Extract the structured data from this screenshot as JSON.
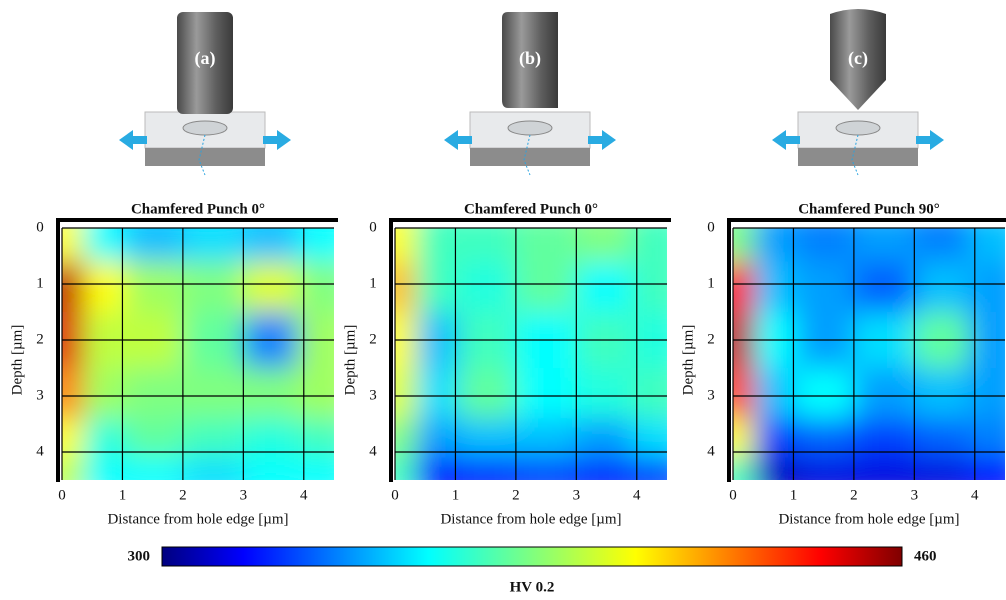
{
  "chart_data": [
    {
      "type": "contour",
      "panel_label": "(a)",
      "title": "Chamfered Punch 0°",
      "xlabel": "Distance from hole edge [µm]",
      "ylabel": "Depth [µm]",
      "x": [
        0.1,
        0.6,
        1.5,
        2.5,
        3.5,
        4.3
      ],
      "y": [
        0.2,
        1,
        2,
        3,
        3.8,
        4.4
      ],
      "z": [
        [
          400,
          360,
          350,
          355,
          350,
          360
        ],
        [
          450,
          400,
          385,
          380,
          395,
          380
        ],
        [
          445,
          390,
          390,
          375,
          340,
          385
        ],
        [
          420,
          385,
          380,
          380,
          380,
          385
        ],
        [
          400,
          365,
          375,
          370,
          365,
          370
        ],
        [
          390,
          360,
          360,
          355,
          360,
          360
        ]
      ],
      "xlim": [
        0,
        4.5
      ],
      "ylim": [
        0,
        4.5
      ],
      "xticks": [
        0,
        1,
        2,
        3,
        4
      ],
      "yticks": [
        0,
        1,
        2,
        3,
        4
      ],
      "grid": true
    },
    {
      "type": "contour",
      "panel_label": "(b)",
      "title": "Chamfered Punch 0°",
      "xlabel": "Distance from hole edge [µm]",
      "ylabel": "Depth [µm]",
      "x": [
        0.1,
        0.6,
        1.5,
        2.5,
        3.5,
        4.3
      ],
      "y": [
        0.2,
        1,
        2,
        3,
        3.8,
        4.4
      ],
      "z": [
        [
          400,
          370,
          370,
          375,
          380,
          370
        ],
        [
          410,
          370,
          365,
          375,
          360,
          370
        ],
        [
          400,
          350,
          370,
          360,
          370,
          365
        ],
        [
          395,
          355,
          375,
          360,
          365,
          370
        ],
        [
          380,
          345,
          350,
          350,
          345,
          355
        ],
        [
          370,
          320,
          325,
          330,
          325,
          330
        ]
      ],
      "xlim": [
        0,
        4.5
      ],
      "ylim": [
        0,
        4.5
      ],
      "xticks": [
        0,
        1,
        2,
        3,
        4
      ],
      "yticks": [
        0,
        1,
        2,
        3,
        4
      ],
      "grid": true
    },
    {
      "type": "contour",
      "panel_label": "(c)",
      "title": "Chamfered Punch 90°",
      "xlabel": "Distance from hole edge [µm]",
      "ylabel": "Depth [µm]",
      "x": [
        0.1,
        0.6,
        1.5,
        2.5,
        3.5,
        4.3
      ],
      "y": [
        0.2,
        1,
        2,
        3,
        3.8,
        4.4
      ],
      "z": [
        [
          380,
          345,
          340,
          345,
          340,
          350
        ],
        [
          440,
          350,
          345,
          335,
          350,
          345
        ],
        [
          450,
          360,
          345,
          355,
          375,
          345
        ],
        [
          430,
          350,
          360,
          345,
          350,
          345
        ],
        [
          400,
          330,
          335,
          330,
          335,
          340
        ],
        [
          370,
          310,
          315,
          315,
          315,
          320
        ]
      ],
      "xlim": [
        0,
        4.5
      ],
      "ylim": [
        0,
        4.5
      ],
      "xticks": [
        0,
        1,
        2,
        3,
        4
      ],
      "yticks": [
        0,
        1,
        2,
        3,
        4
      ],
      "grid": true
    }
  ],
  "colorbar": {
    "min": 300,
    "max": 460,
    "label": "HV 0.2",
    "colormap": "jet"
  }
}
